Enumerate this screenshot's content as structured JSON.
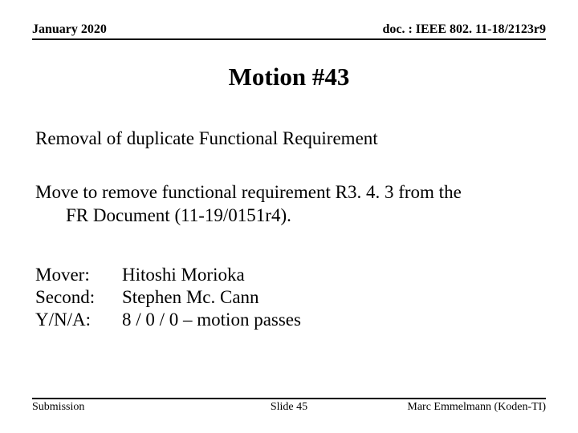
{
  "header": {
    "date": "January 2020",
    "docref": "doc. : IEEE 802. 11-18/2123r9"
  },
  "title": "Motion #43",
  "subtitle": "Removal of duplicate Functional Requirement",
  "body": {
    "line1": "Move to remove functional requirement R3. 4. 3 from the",
    "line2": "FR Document (11-19/0151r4)."
  },
  "details": {
    "mover_label": "Mover:",
    "mover_value": "Hitoshi Morioka",
    "second_label": "Second:",
    "second_value": "Stephen Mc. Cann",
    "vote_label": "Y/N/A:",
    "vote_value": "8 / 0 / 0 – motion passes"
  },
  "footer": {
    "left": "Submission",
    "center": "Slide 45",
    "right": "Marc Emmelmann (Koden-TI)"
  }
}
